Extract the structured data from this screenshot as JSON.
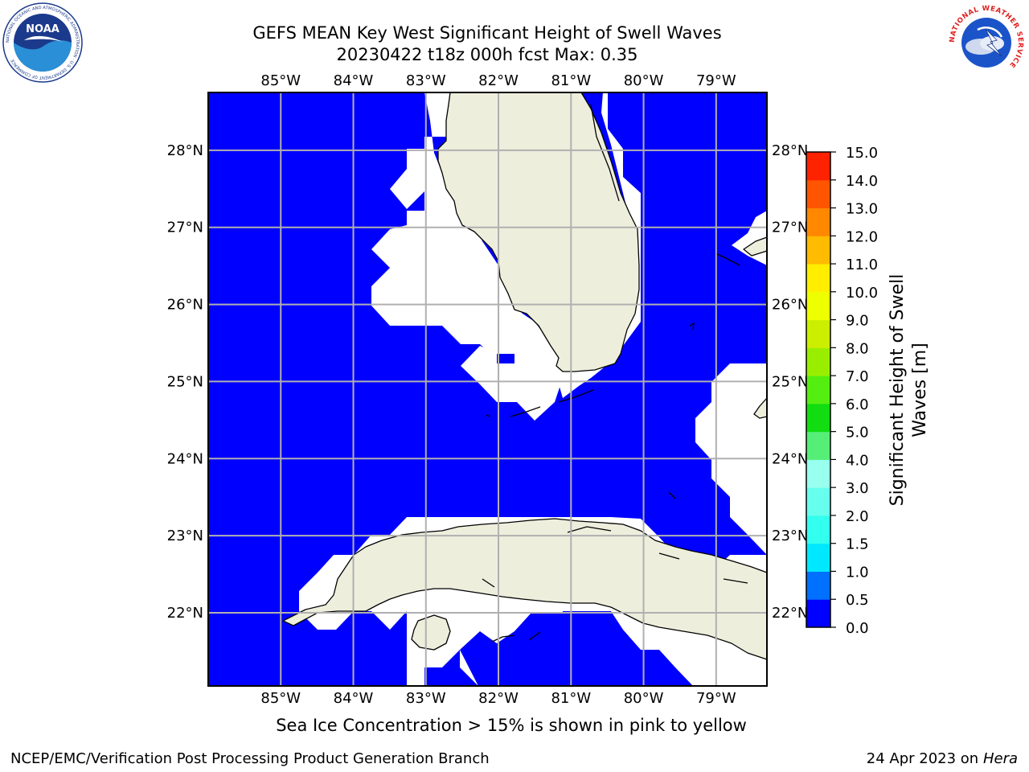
{
  "header": {
    "title_line1": "GEFS MEAN Key West Significant Height of Swell Waves",
    "title_line2": "20230422 t18z 000h fcst   Max: 0.35"
  },
  "map": {
    "lon_labels": [
      "85°W",
      "84°W",
      "83°W",
      "82°W",
      "81°W",
      "80°W",
      "79°W"
    ],
    "lat_labels": [
      "28°N",
      "27°N",
      "26°N",
      "25°N",
      "24°N",
      "23°N",
      "22°N"
    ],
    "lon_range": [
      -86.0,
      -78.3
    ],
    "lat_range": [
      21.05,
      28.75
    ],
    "gridlines": true,
    "ocean_value_color": "#0000ff",
    "land_color": "#eeeedd",
    "nodata_color": "#ffffff"
  },
  "colorbar": {
    "label_line1": "Significant Height of Swell",
    "label_line2": "Waves [m]",
    "ticks": [
      "0.0",
      "0.5",
      "1.0",
      "1.5",
      "2.0",
      "3.0",
      "4.0",
      "5.0",
      "6.0",
      "7.0",
      "8.0",
      "9.0",
      "10.0",
      "11.0",
      "12.0",
      "13.0",
      "14.0",
      "15.0"
    ],
    "colors": [
      "#0000ff",
      "#0070ff",
      "#00e8ff",
      "#33ffee",
      "#66ffee",
      "#99ffee",
      "#55ee77",
      "#11dd11",
      "#55ee11",
      "#99ee00",
      "#ccee00",
      "#eeff00",
      "#ffee00",
      "#ffbb00",
      "#ff8800",
      "#ff5500",
      "#ff2200"
    ]
  },
  "footer": {
    "sea_ice_note": "Sea Ice Concentration > 15% is shown in pink to yellow",
    "left": "NCEP/EMC/Verification Post Processing Product Generation Branch",
    "right_date": "24 Apr 2023 on",
    "right_host": "Hera"
  },
  "logos": {
    "noaa_text": "NOAA",
    "noaa_ring_text": "NATIONAL OCEANIC AND ATMOSPHERIC ADMINISTRATION · U.S. DEPARTMENT OF COMMERCE",
    "nws_ring_text": "NATIONAL WEATHER SERVICE"
  }
}
